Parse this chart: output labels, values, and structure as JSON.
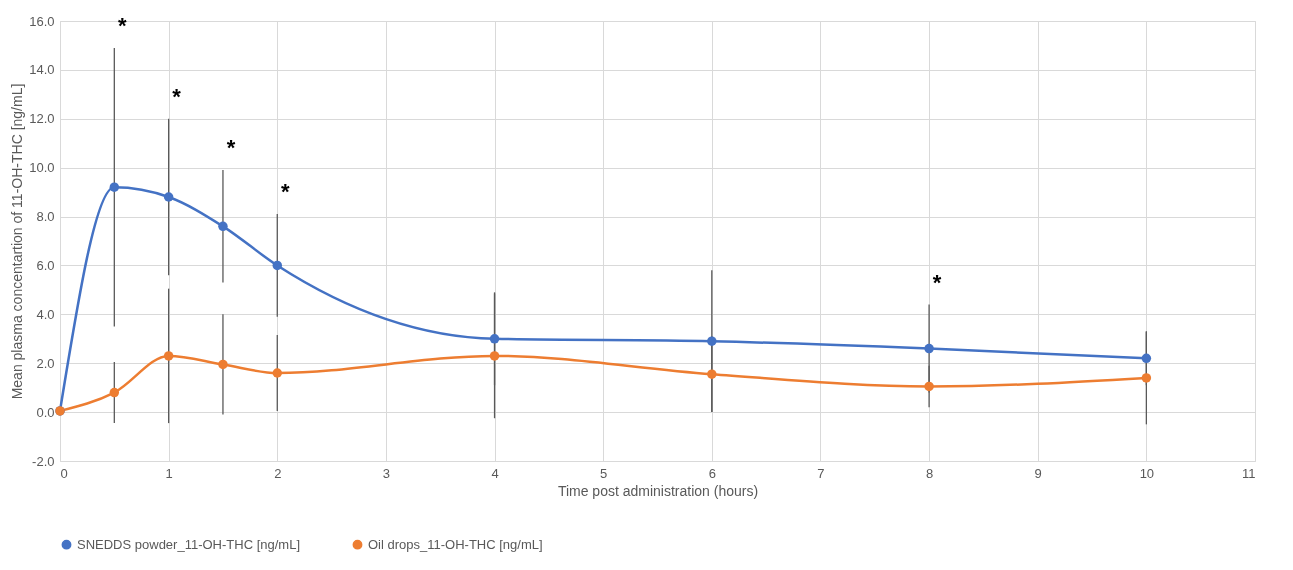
{
  "chart_data": {
    "type": "line",
    "xlabel": "Time  post administration (hours)",
    "ylabel": "Mean  plasma concentartion of 11-OH-THC  [ng/mL]",
    "x": [
      0,
      0.5,
      1,
      1.5,
      2,
      4,
      6,
      8,
      10
    ],
    "series": [
      {
        "name": "SNEDDS powder_11-OH-THC [ng/mL]",
        "color": "#4472c4",
        "values": [
          0.05,
          9.2,
          8.8,
          7.6,
          6.0,
          3.0,
          2.9,
          2.6,
          2.2
        ],
        "errors": [
          null,
          5.7,
          3.2,
          2.3,
          2.1,
          1.9,
          2.9,
          1.8,
          1.1
        ]
      },
      {
        "name": "Oil drops_11-OH-THC [ng/mL]",
        "color": "#ed7d31",
        "values": [
          0.05,
          0.8,
          2.3,
          1.95,
          1.6,
          2.3,
          1.55,
          1.05,
          1.4
        ],
        "errors": [
          null,
          1.25,
          2.75,
          2.05,
          1.55,
          2.55,
          1.55,
          0.85,
          1.9
        ]
      }
    ],
    "xlim": [
      0,
      11
    ],
    "xticks": [
      0,
      1,
      2,
      3,
      4,
      5,
      6,
      7,
      8,
      9,
      10,
      11
    ],
    "ylim": [
      -2,
      16
    ],
    "yticks": [
      {
        "value": -2,
        "label": "-2.0"
      },
      {
        "value": 0,
        "label": "0.0"
      },
      {
        "value": 2,
        "label": "2.0"
      },
      {
        "value": 4,
        "label": "4.0"
      },
      {
        "value": 6,
        "label": "6.0"
      },
      {
        "value": 8,
        "label": "8.0"
      },
      {
        "value": 10,
        "label": "10.0"
      },
      {
        "value": 12,
        "label": "12.0"
      },
      {
        "value": 14,
        "label": "14.0"
      },
      {
        "value": 16,
        "label": "16.0"
      }
    ],
    "annotations": [
      {
        "text": "*",
        "x": 0.5,
        "y": 14.9
      },
      {
        "text": "*",
        "x": 1,
        "y": 12.0
      },
      {
        "text": "*",
        "x": 1.5,
        "y": 9.9
      },
      {
        "text": "*",
        "x": 2,
        "y": 8.1
      },
      {
        "text": "*",
        "x": 8,
        "y": 4.4
      }
    ],
    "grid": true,
    "legend": "bottom",
    "marker": "circle",
    "line_style": "solid"
  }
}
